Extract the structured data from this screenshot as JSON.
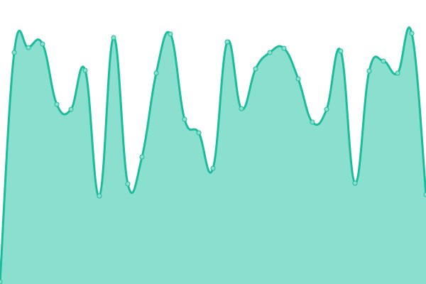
{
  "chart_data": {
    "type": "area",
    "title": "",
    "xlabel": "",
    "ylabel": "",
    "x": [
      0,
      1,
      2,
      3,
      4,
      5,
      6,
      7,
      8,
      9,
      10,
      11,
      12,
      13,
      14,
      15,
      16,
      17,
      18,
      19,
      20,
      21,
      22,
      23,
      24,
      25,
      26,
      27,
      28,
      29,
      30
    ],
    "series": [
      {
        "values": [
          3,
          326,
          333,
          338,
          253,
          246,
          301,
          124,
          347,
          141,
          179,
          297,
          352,
          232,
          213,
          163,
          341,
          247,
          303,
          326,
          332,
          289,
          228,
          246,
          328,
          142,
          300,
          314,
          297,
          353,
          126
        ]
      }
    ],
    "ylim": [
      0,
      400
    ],
    "xlim": [
      0,
      30
    ],
    "grid": false,
    "axes_visible": false,
    "smooth": true,
    "markers": true,
    "colors": {
      "line": "#1abc9c",
      "fill": "#8adfcf",
      "marker_fill": "#8adfcf"
    }
  }
}
